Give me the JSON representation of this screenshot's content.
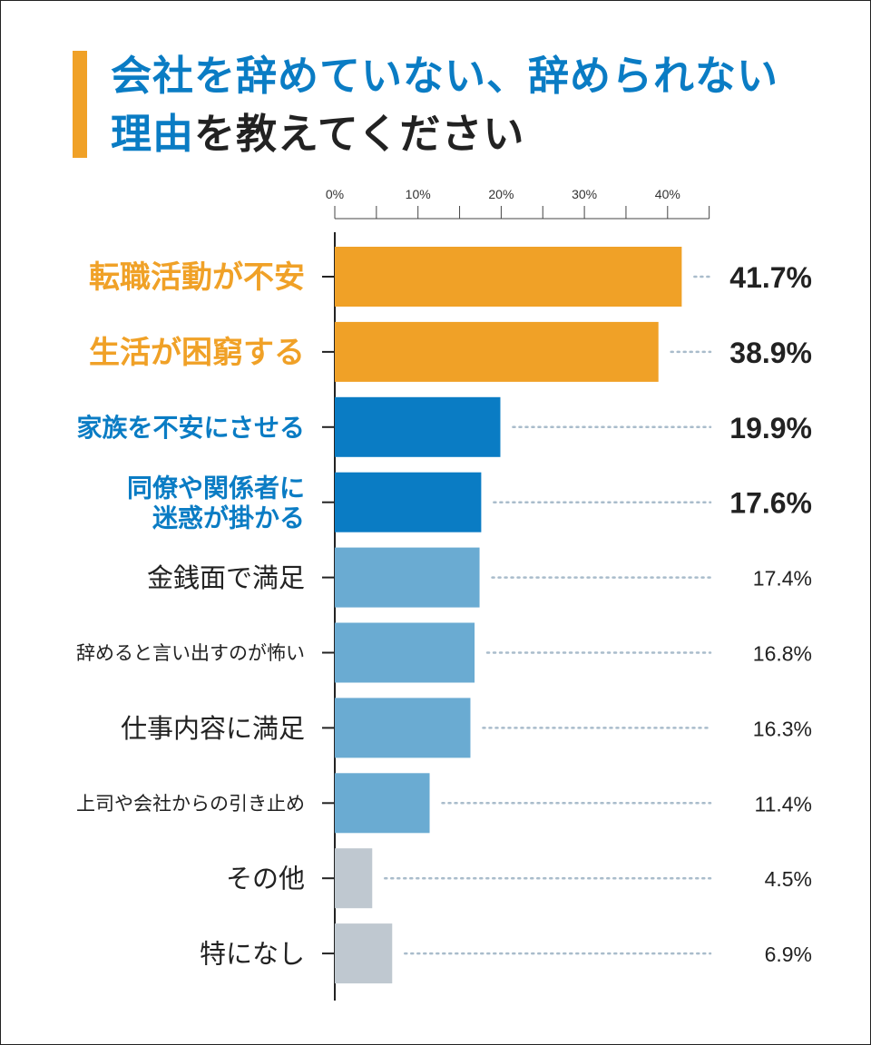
{
  "title": {
    "line1": "会社を辞めていない、辞められない",
    "line2_highlight": "理由",
    "line2_rest": "を教えてください"
  },
  "chart_data": {
    "type": "bar",
    "orientation": "horizontal",
    "title": "会社を辞めていない、辞められない理由を教えてください",
    "xlim": [
      0,
      45
    ],
    "ticks": [
      0,
      10,
      20,
      30,
      40
    ],
    "tick_labels": [
      "0%",
      "10%",
      "20%",
      "30%",
      "40%"
    ],
    "unit": "%",
    "categories": [
      {
        "label": [
          "転職活動が不安"
        ],
        "value": 41.7,
        "value_label": "41.7%",
        "color": "#f0a127",
        "label_color": "#f0a127",
        "emphasis": "high"
      },
      {
        "label": [
          "生活が困窮する"
        ],
        "value": 38.9,
        "value_label": "38.9%",
        "color": "#f0a127",
        "label_color": "#f0a127",
        "emphasis": "high"
      },
      {
        "label": [
          "家族を不安にさせる"
        ],
        "value": 19.9,
        "value_label": "19.9%",
        "color": "#0a7cc4",
        "label_color": "#0a7cc4",
        "emphasis": "high"
      },
      {
        "label": [
          "同僚や関係者に",
          "迷惑が掛かる"
        ],
        "value": 17.6,
        "value_label": "17.6%",
        "color": "#0a7cc4",
        "label_color": "#0a7cc4",
        "emphasis": "high"
      },
      {
        "label": [
          "金銭面で満足"
        ],
        "value": 17.4,
        "value_label": "17.4%",
        "color": "#6aabd2",
        "label_color": "#222222",
        "emphasis": "normal"
      },
      {
        "label": [
          "辞めると言い出すのが怖い"
        ],
        "value": 16.8,
        "value_label": "16.8%",
        "color": "#6aabd2",
        "label_color": "#222222",
        "emphasis": "small"
      },
      {
        "label": [
          "仕事内容に満足"
        ],
        "value": 16.3,
        "value_label": "16.3%",
        "color": "#6aabd2",
        "label_color": "#222222",
        "emphasis": "normal"
      },
      {
        "label": [
          "上司や会社からの引き止め"
        ],
        "value": 11.4,
        "value_label": "11.4%",
        "color": "#6aabd2",
        "label_color": "#222222",
        "emphasis": "small"
      },
      {
        "label": [
          "その他"
        ],
        "value": 4.5,
        "value_label": "4.5%",
        "color": "#bfc8d0",
        "label_color": "#222222",
        "emphasis": "normal"
      },
      {
        "label": [
          "特になし"
        ],
        "value": 6.9,
        "value_label": "6.9%",
        "color": "#bfc8d0",
        "label_color": "#222222",
        "emphasis": "normal"
      }
    ]
  }
}
